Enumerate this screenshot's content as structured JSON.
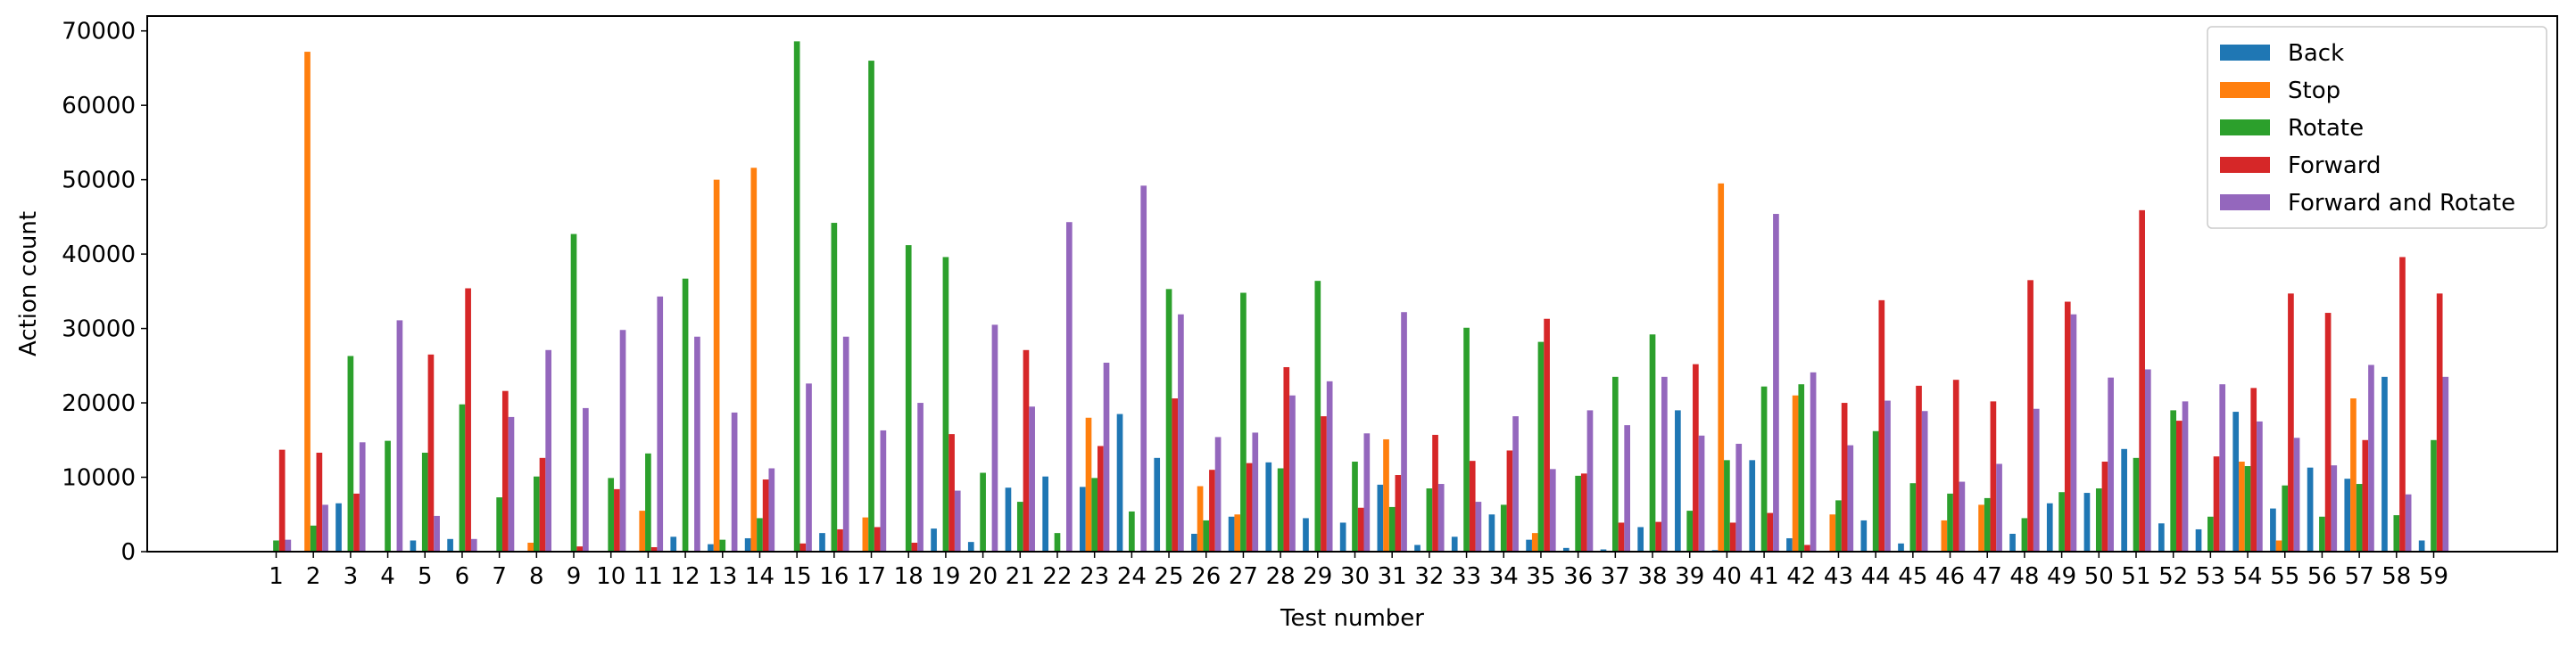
{
  "chart_data": {
    "type": "bar",
    "xlabel": "Test number",
    "ylabel": "Action count",
    "ylim": [
      0,
      72000
    ],
    "yticks": [
      0,
      10000,
      20000,
      30000,
      40000,
      50000,
      60000,
      70000
    ],
    "ytick_labels": [
      "0",
      "10000",
      "20000",
      "30000",
      "40000",
      "50000",
      "60000",
      "70000"
    ],
    "grid": false,
    "legend_position": "top-right",
    "categories": [
      "1",
      "2",
      "3",
      "4",
      "5",
      "6",
      "7",
      "8",
      "9",
      "10",
      "11",
      "12",
      "13",
      "14",
      "15",
      "16",
      "17",
      "18",
      "19",
      "20",
      "21",
      "22",
      "23",
      "24",
      "25",
      "26",
      "27",
      "28",
      "29",
      "30",
      "31",
      "32",
      "33",
      "34",
      "35",
      "36",
      "37",
      "38",
      "39",
      "40",
      "41",
      "42",
      "43",
      "44",
      "45",
      "46",
      "47",
      "48",
      "49",
      "50",
      "51",
      "52",
      "53",
      "54",
      "55",
      "56",
      "57",
      "58",
      "59"
    ],
    "series": [
      {
        "name": "Back",
        "color": "#1f77b4",
        "values": [
          0,
          0,
          6500,
          0,
          1500,
          1700,
          0,
          0,
          0,
          0,
          0,
          2000,
          1000,
          1800,
          0,
          2500,
          0,
          0,
          3100,
          1300,
          8600,
          10100,
          8700,
          18500,
          12600,
          2400,
          4700,
          12000,
          4500,
          3900,
          9000,
          900,
          2000,
          5000,
          1600,
          500,
          300,
          3300,
          19000,
          200,
          12300,
          1800,
          0,
          4200,
          1100,
          0,
          0,
          2400,
          6500,
          7900,
          13800,
          3800,
          3000,
          18800,
          5800,
          11300,
          9800,
          23500,
          1500
        ]
      },
      {
        "name": "Stop",
        "color": "#ff7f0e",
        "values": [
          0,
          67200,
          0,
          0,
          0,
          0,
          0,
          1200,
          0,
          0,
          5500,
          0,
          50000,
          51600,
          0,
          0,
          4600,
          0,
          0,
          0,
          0,
          0,
          18000,
          0,
          0,
          8800,
          5000,
          0,
          0,
          0,
          15100,
          0,
          0,
          0,
          2500,
          0,
          0,
          0,
          0,
          49500,
          0,
          21000,
          5000,
          0,
          0,
          4200,
          6300,
          0,
          0,
          0,
          0,
          0,
          0,
          12100,
          1500,
          0,
          20600,
          0,
          0
        ]
      },
      {
        "name": "Rotate",
        "color": "#2ca02c",
        "values": [
          1500,
          3500,
          26300,
          14900,
          13300,
          19800,
          7300,
          10100,
          42700,
          9900,
          13200,
          36700,
          1600,
          4500,
          68600,
          44200,
          66000,
          41200,
          39600,
          10600,
          6700,
          2500,
          9900,
          5400,
          35300,
          4200,
          34800,
          11200,
          36400,
          12100,
          6000,
          8500,
          30100,
          6300,
          28200,
          10200,
          23500,
          29200,
          5500,
          12300,
          22200,
          22500,
          6900,
          16200,
          9200,
          7800,
          7200,
          4500,
          8000,
          8500,
          12600,
          19000,
          4700,
          11500,
          8900,
          4700,
          9100,
          4900,
          15000
        ]
      },
      {
        "name": "Forward",
        "color": "#d62728",
        "values": [
          13700,
          13300,
          7800,
          0,
          26500,
          35400,
          21600,
          12600,
          700,
          8400,
          600,
          0,
          0,
          9700,
          1100,
          3000,
          3300,
          1200,
          15800,
          0,
          27100,
          0,
          14200,
          0,
          20600,
          11000,
          11900,
          24800,
          18200,
          5900,
          10300,
          15700,
          12200,
          13600,
          31300,
          10500,
          3900,
          4000,
          25200,
          3900,
          5200,
          900,
          20000,
          33800,
          22300,
          23100,
          20200,
          36500,
          33600,
          12100,
          45900,
          17600,
          12800,
          22000,
          34700,
          32100,
          15000,
          39600,
          34700
        ]
      },
      {
        "name": "Forward and Rotate",
        "color": "#9467bd",
        "values": [
          1600,
          6300,
          14700,
          31100,
          4800,
          1700,
          18100,
          27100,
          19300,
          29800,
          34300,
          28900,
          18700,
          11200,
          22600,
          28900,
          16300,
          20000,
          8200,
          30500,
          19500,
          44300,
          25400,
          49200,
          31900,
          15400,
          16000,
          21000,
          22900,
          15900,
          32200,
          9100,
          6700,
          18200,
          11100,
          19000,
          17000,
          23500,
          15600,
          14500,
          45400,
          24100,
          14300,
          20300,
          18900,
          9400,
          11800,
          19200,
          31900,
          23400,
          24500,
          20200,
          22500,
          17500,
          15300,
          11600,
          25100,
          7700,
          23500
        ]
      }
    ]
  }
}
